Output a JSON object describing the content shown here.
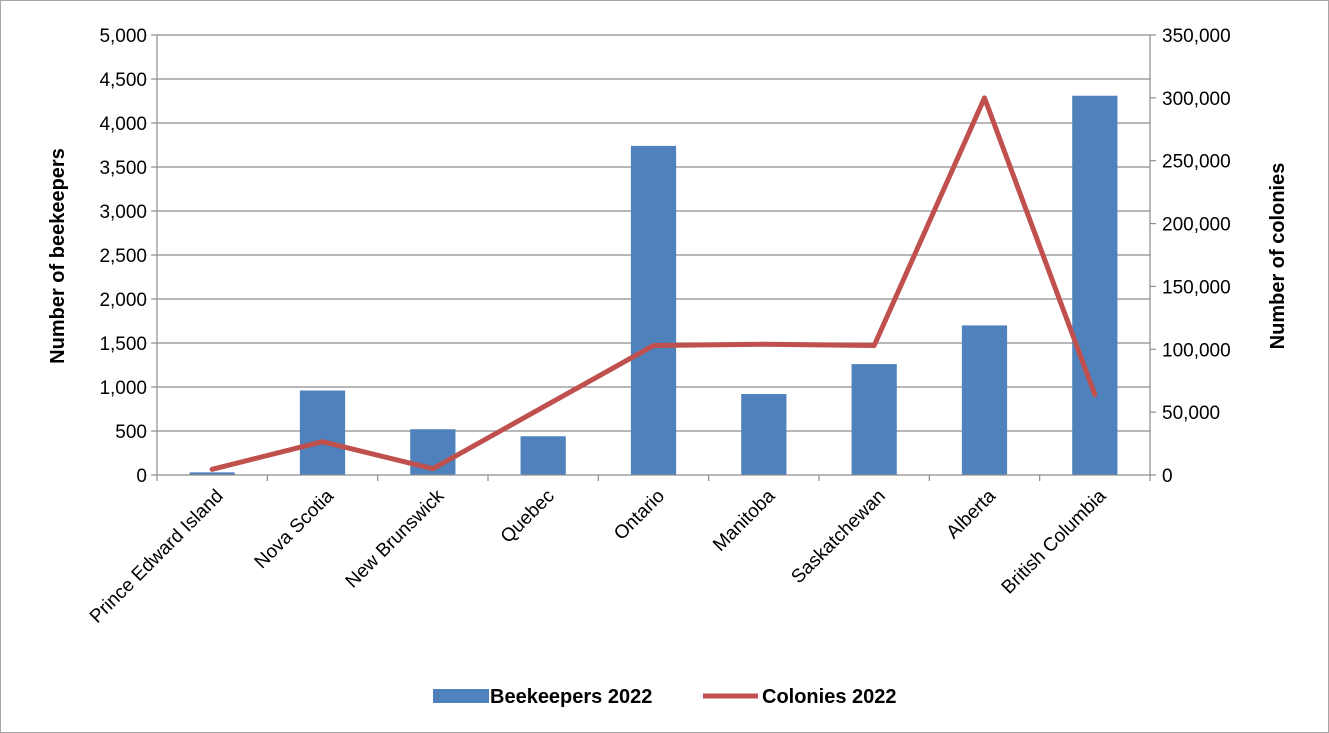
{
  "chart_data": {
    "type": "bar",
    "categories": [
      "Prince Edward Island",
      "Nova Scotia",
      "New Brunswick",
      "Quebec",
      "Ontario",
      "Manitoba",
      "Saskatchewan",
      "Alberta",
      "British Columbia"
    ],
    "series": [
      {
        "name": "Beekeepers 2022",
        "type": "bar",
        "axis": "left",
        "color": "#4f81bd",
        "values": [
          30,
          960,
          520,
          440,
          3740,
          920,
          1260,
          1700,
          4310
        ]
      },
      {
        "name": "Colonies 2022",
        "type": "line",
        "axis": "right",
        "color": "#c0504d",
        "values": [
          4500,
          26500,
          5000,
          54000,
          103000,
          104000,
          103000,
          300000,
          64000
        ]
      }
    ],
    "ylabel": "Number of beekeepers",
    "y2label": "Number of colonies",
    "ylim": [
      0,
      5000
    ],
    "yticks": [
      0,
      500,
      1000,
      1500,
      2000,
      2500,
      3000,
      3500,
      4000,
      4500,
      5000
    ],
    "y2lim": [
      0,
      350000
    ],
    "y2ticks": [
      0,
      50000,
      100000,
      150000,
      200000,
      250000,
      300000,
      350000
    ],
    "grid": true,
    "legend_position": "bottom"
  }
}
